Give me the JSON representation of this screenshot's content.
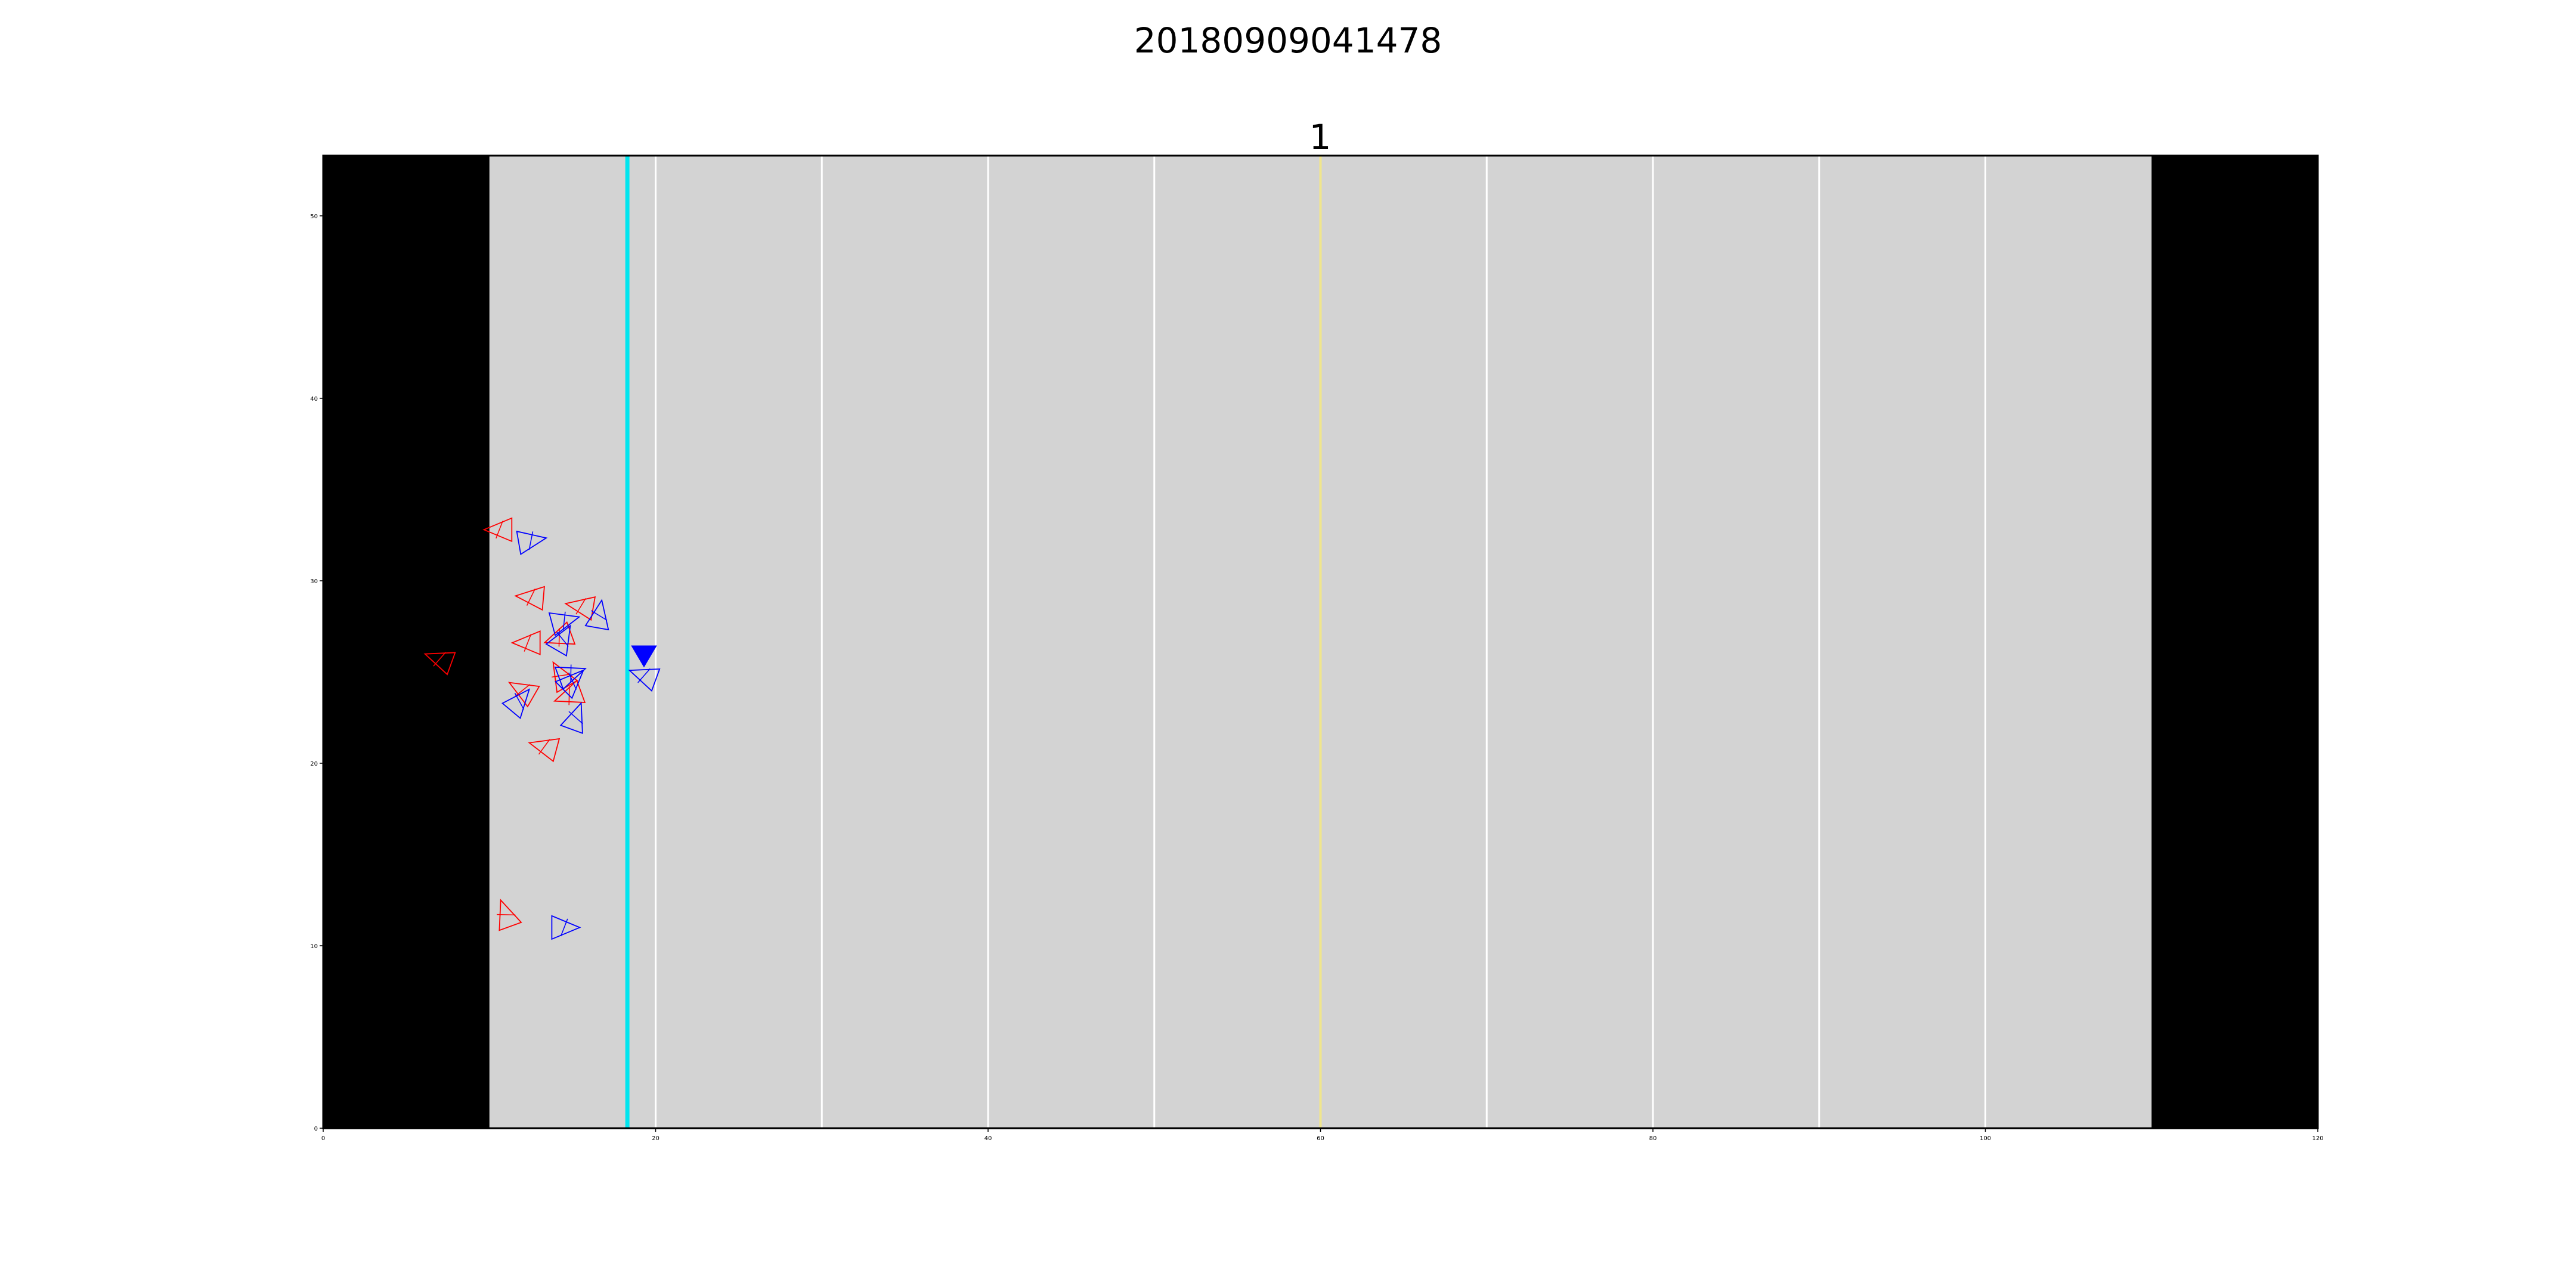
{
  "figure": {
    "suptitle": "20180909041478",
    "axes_title": "1"
  },
  "chart_data": {
    "type": "scatter",
    "title": "1",
    "xlabel": "",
    "ylabel": "",
    "xlim": [
      0,
      120
    ],
    "ylim": [
      0,
      53.3
    ],
    "xticks": [
      0,
      20,
      40,
      60,
      80,
      100,
      120
    ],
    "yticks": [
      0,
      10,
      20,
      30,
      40,
      50
    ],
    "grid": false,
    "field": {
      "background_color": "#d3d3d3",
      "endzone_color": "#000000",
      "endzones": [
        [
          0,
          10
        ],
        [
          110,
          120
        ]
      ],
      "yard_lines": [
        20,
        30,
        40,
        50,
        70,
        80,
        90,
        100
      ],
      "yard_line_color": "#ffffff",
      "line_of_scrimmage": 18.3,
      "line_of_scrimmage_color": "#00e5ee",
      "first_down_line": 60,
      "first_down_color": "#f0e68c"
    },
    "series": [
      {
        "color": "#ff0000",
        "marker": "triangle-outline",
        "points": [
          {
            "x": 7.0,
            "y": 25.7,
            "dir": 160
          },
          {
            "x": 10.6,
            "y": 32.8,
            "dir": 180
          },
          {
            "x": 12.5,
            "y": 29.1,
            "dir": 175
          },
          {
            "x": 15.5,
            "y": 28.6,
            "dir": 170
          },
          {
            "x": 12.3,
            "y": 26.6,
            "dir": 180
          },
          {
            "x": 14.2,
            "y": 26.9,
            "dir": 200
          },
          {
            "x": 12.0,
            "y": 24.0,
            "dir": 150
          },
          {
            "x": 14.3,
            "y": 24.8,
            "dir": 120
          },
          {
            "x": 14.8,
            "y": 23.7,
            "dir": 200
          },
          {
            "x": 13.3,
            "y": 20.9,
            "dir": 165
          },
          {
            "x": 11.0,
            "y": 11.7,
            "dir": 110
          }
        ]
      },
      {
        "color": "#0000ff",
        "marker": "triangle-outline",
        "points": [
          {
            "x": 12.5,
            "y": 32.2,
            "dir": 10
          },
          {
            "x": 16.6,
            "y": 28.1,
            "dir": 80
          },
          {
            "x": 14.5,
            "y": 27.8,
            "dir": 15
          },
          {
            "x": 14.4,
            "y": 26.8,
            "dir": 60
          },
          {
            "x": 14.9,
            "y": 24.9,
            "dir": 20
          },
          {
            "x": 15.0,
            "y": 24.5,
            "dir": 45
          },
          {
            "x": 11.8,
            "y": 23.4,
            "dir": 50
          },
          {
            "x": 15.2,
            "y": 22.5,
            "dir": 70
          },
          {
            "x": 19.3,
            "y": 24.8,
            "dir": 160
          },
          {
            "x": 14.5,
            "y": 11.0,
            "dir": 0
          }
        ]
      }
    ],
    "ball": {
      "x": 19.3,
      "y": 25.9,
      "color": "#0000ff"
    }
  }
}
